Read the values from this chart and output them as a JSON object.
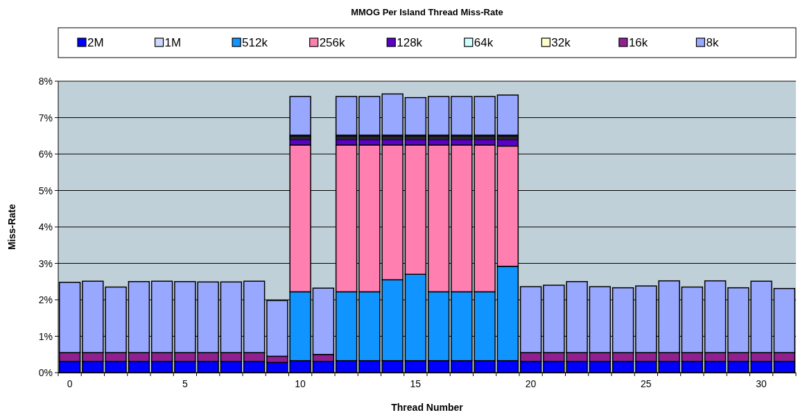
{
  "chart_data": {
    "type": "bar",
    "stacked": true,
    "title": "MMOG Per Island Thread Miss-Rate",
    "xlabel": "Thread Number",
    "ylabel": "Miss-Rate",
    "categories": [
      "0",
      null,
      null,
      null,
      null,
      "5",
      null,
      null,
      null,
      null,
      "10",
      null,
      null,
      null,
      null,
      "15",
      null,
      null,
      null,
      null,
      "20",
      null,
      null,
      null,
      null,
      "25",
      null,
      null,
      null,
      null,
      "30",
      null
    ],
    "ylim": [
      0,
      8
    ],
    "yticks": [
      {
        "value": 0,
        "label": "0%"
      },
      {
        "value": 1,
        "label": "1%"
      },
      {
        "value": 2,
        "label": "2%"
      },
      {
        "value": 3,
        "label": "3%"
      },
      {
        "value": 4,
        "label": "4%"
      },
      {
        "value": 5,
        "label": "5%"
      },
      {
        "value": 6,
        "label": "6%"
      },
      {
        "value": 7,
        "label": "7%"
      },
      {
        "value": 8,
        "label": "8%"
      }
    ],
    "grid": "y",
    "legend": "top",
    "series": [
      {
        "name": "2M",
        "color": "#0000ff",
        "values": [
          0.31,
          0.31,
          0.31,
          0.31,
          0.31,
          0.31,
          0.31,
          0.31,
          0.31,
          0.28,
          0.33,
          0.31,
          0.33,
          0.33,
          0.33,
          0.33,
          0.33,
          0.33,
          0.33,
          0.33,
          0.31,
          0.31,
          0.31,
          0.31,
          0.31,
          0.31,
          0.31,
          0.31,
          0.31,
          0.31,
          0.31,
          0.31
        ]
      },
      {
        "name": "1M",
        "color": "#ccd8ff",
        "values": [
          0,
          0,
          0,
          0,
          0,
          0,
          0,
          0,
          0,
          0,
          0,
          0,
          0,
          0,
          0,
          0,
          0,
          0,
          0,
          0,
          0,
          0,
          0,
          0,
          0,
          0,
          0,
          0,
          0,
          0,
          0,
          0
        ]
      },
      {
        "name": "512k",
        "color": "#1094ff",
        "values": [
          0,
          0,
          0,
          0,
          0,
          0,
          0,
          0,
          0,
          0,
          1.89,
          0,
          1.89,
          1.89,
          2.22,
          2.37,
          1.89,
          1.89,
          1.89,
          2.59,
          0,
          0,
          0,
          0,
          0,
          0,
          0,
          0,
          0,
          0,
          0,
          0
        ]
      },
      {
        "name": "256k",
        "color": "#ff80b0",
        "values": [
          0,
          0,
          0,
          0,
          0,
          0,
          0,
          0,
          0,
          0,
          4.03,
          0,
          4.03,
          4.03,
          3.7,
          3.55,
          4.03,
          4.03,
          4.03,
          3.3,
          0,
          0,
          0,
          0,
          0,
          0,
          0,
          0,
          0,
          0,
          0,
          0
        ]
      },
      {
        "name": "128k",
        "color": "#5b00c8",
        "values": [
          0,
          0,
          0,
          0,
          0,
          0,
          0,
          0,
          0,
          0,
          0.15,
          0,
          0.15,
          0.15,
          0.15,
          0.15,
          0.15,
          0.15,
          0.15,
          0.18,
          0,
          0,
          0,
          0,
          0,
          0,
          0,
          0,
          0,
          0,
          0,
          0
        ]
      },
      {
        "name": "64k",
        "color": "#ccffff",
        "values": [
          0,
          0,
          0,
          0,
          0,
          0,
          0,
          0,
          0,
          0,
          0.04,
          0,
          0.04,
          0.04,
          0.04,
          0.04,
          0.04,
          0.04,
          0.04,
          0.04,
          0,
          0,
          0,
          0,
          0,
          0,
          0,
          0,
          0,
          0,
          0,
          0
        ]
      },
      {
        "name": "32k",
        "color": "#ffffcc",
        "values": [
          0,
          0,
          0,
          0,
          0,
          0,
          0,
          0,
          0,
          0,
          0.04,
          0,
          0.04,
          0.04,
          0.04,
          0.04,
          0.04,
          0.04,
          0.04,
          0.04,
          0,
          0,
          0,
          0,
          0,
          0,
          0,
          0,
          0,
          0,
          0,
          0
        ]
      },
      {
        "name": "16k",
        "color": "#902090",
        "values": [
          0.24,
          0.24,
          0.24,
          0.24,
          0.24,
          0.24,
          0.24,
          0.24,
          0.24,
          0.17,
          0.04,
          0.19,
          0.04,
          0.04,
          0.04,
          0.04,
          0.04,
          0.04,
          0.04,
          0.04,
          0.24,
          0.24,
          0.24,
          0.24,
          0.24,
          0.24,
          0.24,
          0.24,
          0.24,
          0.24,
          0.24,
          0.24
        ]
      },
      {
        "name": "8k",
        "color": "#99a8ff",
        "values": [
          1.93,
          1.96,
          1.8,
          1.95,
          1.96,
          1.95,
          1.94,
          1.94,
          1.96,
          1.53,
          1.06,
          1.82,
          1.06,
          1.06,
          1.13,
          1.03,
          1.06,
          1.06,
          1.06,
          1.1,
          1.81,
          1.85,
          1.95,
          1.81,
          1.78,
          1.83,
          1.97,
          1.8,
          1.97,
          1.78,
          1.96,
          1.76
        ]
      }
    ]
  }
}
